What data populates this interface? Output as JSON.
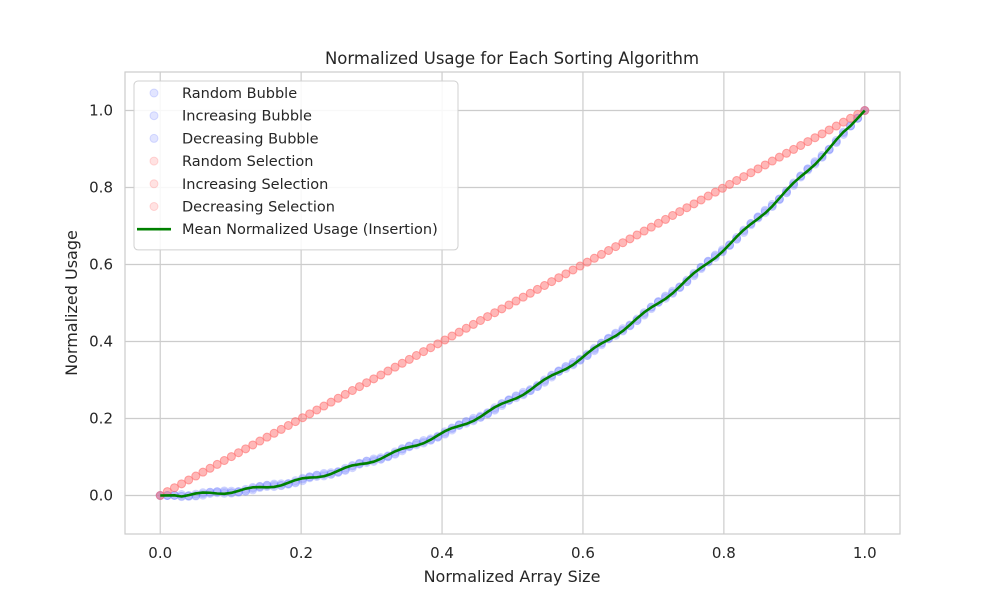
{
  "chart_data": {
    "type": "scatter",
    "title": "Normalized Usage for Each Sorting Algorithm",
    "xlabel": "Normalized Array Size",
    "ylabel": "Normalized Usage",
    "xlim": [
      -0.05,
      1.05
    ],
    "ylim": [
      -0.1,
      1.1
    ],
    "xticks": [
      "0.0",
      "0.2",
      "0.4",
      "0.6",
      "0.8",
      "1.0"
    ],
    "xtick_values": [
      0,
      0.2,
      0.4,
      0.6,
      0.8,
      1.0
    ],
    "yticks": [
      "0.0",
      "0.2",
      "0.4",
      "0.6",
      "0.8",
      "1.0"
    ],
    "ytick_values": [
      0,
      0.2,
      0.4,
      0.6,
      0.8,
      1.0
    ],
    "grid": true,
    "legend_position": "top-left",
    "n_points": 100,
    "series": [
      {
        "name": "Random Bubble",
        "kind": "scatter",
        "color": "#6f7fff",
        "alpha": 0.2,
        "model": "quadratic"
      },
      {
        "name": "Increasing Bubble",
        "kind": "scatter",
        "color": "#6f7fff",
        "alpha": 0.2,
        "model": "quadratic"
      },
      {
        "name": "Decreasing Bubble",
        "kind": "scatter",
        "color": "#6f7fff",
        "alpha": 0.2,
        "model": "quadratic"
      },
      {
        "name": "Random Selection",
        "kind": "scatter",
        "color": "#ff6f6f",
        "alpha": 0.2,
        "model": "linear"
      },
      {
        "name": "Increasing Selection",
        "kind": "scatter",
        "color": "#ff6f6f",
        "alpha": 0.2,
        "model": "linear"
      },
      {
        "name": "Decreasing Selection",
        "kind": "scatter",
        "color": "#ff6f6f",
        "alpha": 0.2,
        "model": "linear"
      },
      {
        "name": "Mean Normalized Usage (Insertion)",
        "kind": "line",
        "color": "#008000",
        "model": "quadratic"
      }
    ]
  }
}
